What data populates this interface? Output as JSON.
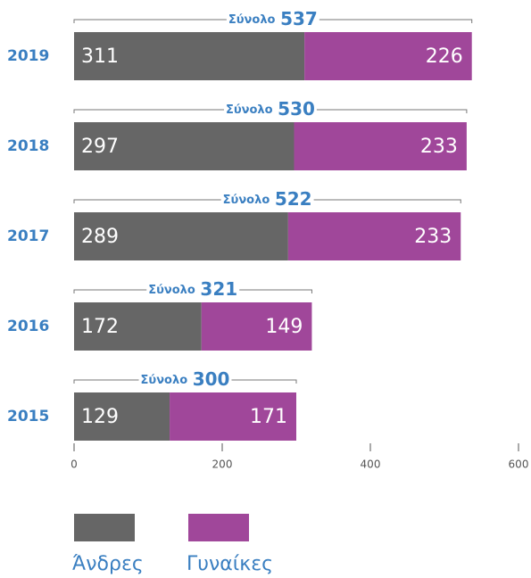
{
  "chart_data": {
    "type": "stacked-bar-horizontal",
    "categories": [
      "2019",
      "2018",
      "2017",
      "2016",
      "2015"
    ],
    "series": [
      {
        "name": "Άνδρες",
        "color": "#666666",
        "values": [
          311,
          297,
          289,
          172,
          129
        ]
      },
      {
        "name": "Γυναίκες",
        "color": "#a0479a",
        "values": [
          226,
          233,
          233,
          149,
          171
        ]
      }
    ],
    "total_label": "Σύνολο",
    "totals": [
      537,
      530,
      522,
      321,
      300
    ],
    "xlim": [
      0,
      600
    ],
    "xticks": [
      0,
      200,
      400,
      600
    ]
  }
}
